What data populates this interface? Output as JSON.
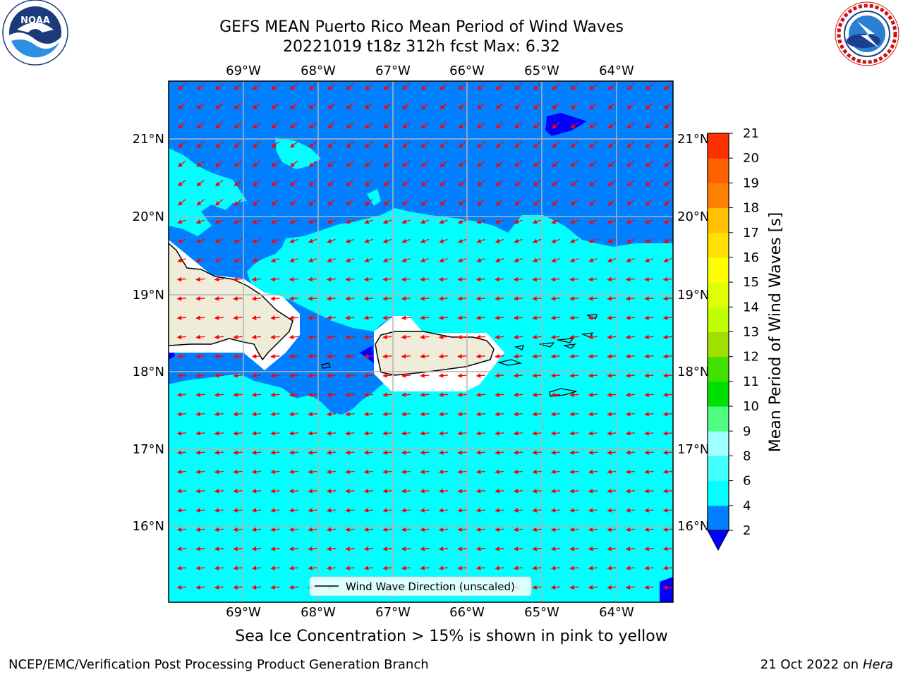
{
  "header": {
    "title_line1": "GEFS MEAN Puerto Rico Mean Period of Wind Waves",
    "title_line2": "20221019 t18z 312h fcst   Max: 6.32"
  },
  "logos": {
    "noaa_text": "NOAA",
    "noaa_ring": "NATIONAL OCEANIC AND ATMOSPHERIC ADMINISTRATION · U.S. DEPARTMENT OF COMMERCE",
    "nws_ring": "NATIONAL WEATHER SERVICE"
  },
  "map": {
    "lon_labels": [
      "69°W",
      "68°W",
      "67°W",
      "66°W",
      "65°W",
      "64°W"
    ],
    "lat_labels": [
      "21°N",
      "20°N",
      "19°N",
      "18°N",
      "17°N",
      "16°N"
    ],
    "legend_label": "Wind Wave Direction (unscaled)",
    "colors": {
      "ocean_2_4": "#0080ff",
      "ocean_4_6": "#00ffff",
      "ocean_lt_2": "#0000ff",
      "land": "#efedda",
      "arrow": "#ff0000",
      "grid": "#b4b4b4"
    }
  },
  "colorbar": {
    "title": "Mean Period of Wind Waves [s]",
    "ticks": [
      "2",
      "4",
      "6",
      "8",
      "9",
      "10",
      "11",
      "12",
      "13",
      "14",
      "15",
      "16",
      "17",
      "18",
      "19",
      "20",
      "21"
    ],
    "colors": [
      "#0080ff",
      "#00ffff",
      "#40ffff",
      "#a0ffff",
      "#50ff80",
      "#00e000",
      "#40e000",
      "#a0e000",
      "#c0ff00",
      "#e0ff00",
      "#ffff00",
      "#ffe000",
      "#ffc000",
      "#ff8000",
      "#ff6000",
      "#ff3000",
      "#ff0000"
    ],
    "under_color": "#0000ff"
  },
  "footer": {
    "subtitle": "Sea Ice Concentration > 15% is shown in pink to yellow",
    "credit": "NCEP/EMC/Verification Post Processing Product Generation Branch",
    "date": "21 Oct 2022 on",
    "host": "Hera"
  }
}
